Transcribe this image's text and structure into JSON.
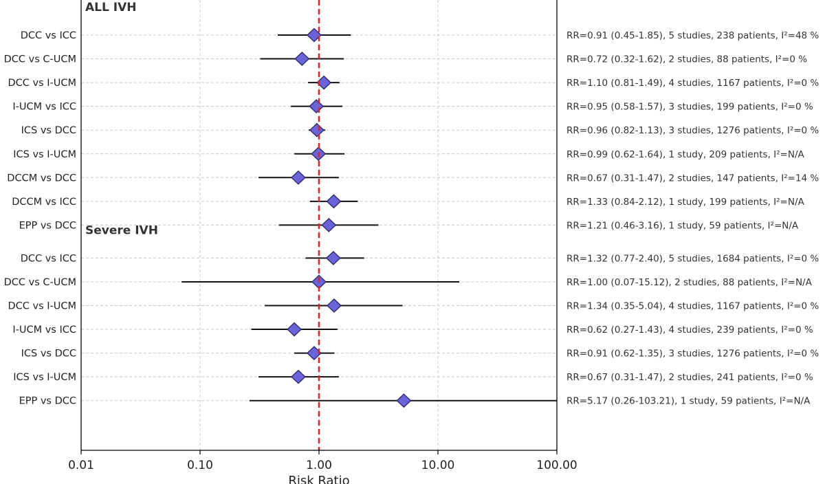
{
  "chart_data": {
    "type": "forest",
    "xlabel": "Risk Ratio",
    "xscale": "log",
    "xlim": [
      0.01,
      100
    ],
    "x_ticks": [
      0.01,
      0.1,
      1,
      10,
      100
    ],
    "x_tick_labels": [
      "0.01",
      "0.10",
      "1.00",
      "10.00",
      "100.00"
    ],
    "reference_line": 1.0,
    "grid": true,
    "colors": {
      "marker_fill": "#6b63d9",
      "marker_edge": "#2a2560",
      "ref_line": "#d62728",
      "ci_line": "#111111",
      "grid": "#c8c8c8"
    },
    "sections": [
      {
        "title": "ALL IVH",
        "rows": [
          {
            "label": "DCC vs ICC",
            "rr": 0.91,
            "lo": 0.45,
            "hi": 1.85,
            "text": "RR=0.91 (0.45-1.85), 5 studies, 238 patients, I²=48 %"
          },
          {
            "label": "DCC vs C-UCM",
            "rr": 0.72,
            "lo": 0.32,
            "hi": 1.62,
            "text": "RR=0.72 (0.32-1.62), 2 studies, 88 patients, I²=0 %"
          },
          {
            "label": "DCC vs I-UCM",
            "rr": 1.1,
            "lo": 0.81,
            "hi": 1.49,
            "text": "RR=1.10 (0.81-1.49), 4 studies, 1167 patients, I²=0 %"
          },
          {
            "label": "I-UCM vs ICC",
            "rr": 0.95,
            "lo": 0.58,
            "hi": 1.57,
            "text": "RR=0.95 (0.58-1.57), 3 studies, 199 patients, I²=0 %"
          },
          {
            "label": "ICS vs DCC",
            "rr": 0.96,
            "lo": 0.82,
            "hi": 1.13,
            "text": "RR=0.96 (0.82-1.13), 3 studies, 1276 patients, I²=0 %"
          },
          {
            "label": "ICS vs I-UCM",
            "rr": 0.99,
            "lo": 0.62,
            "hi": 1.64,
            "text": "RR=0.99 (0.62-1.64), 1 study, 209 patients, I²=N/A"
          },
          {
            "label": "DCCM vs DCC",
            "rr": 0.67,
            "lo": 0.31,
            "hi": 1.47,
            "text": "RR=0.67 (0.31-1.47), 2 studies, 147 patients, I²=14 %"
          },
          {
            "label": "DCCM vs ICC",
            "rr": 1.33,
            "lo": 0.84,
            "hi": 2.12,
            "text": "RR=1.33 (0.84-2.12), 1 study, 199 patients, I²=N/A"
          },
          {
            "label": "EPP vs DCC",
            "rr": 1.21,
            "lo": 0.46,
            "hi": 3.16,
            "text": "RR=1.21 (0.46-3.16), 1 study, 59 patients, I²=N/A"
          }
        ]
      },
      {
        "title": "Severe IVH",
        "rows": [
          {
            "label": "DCC vs ICC",
            "rr": 1.32,
            "lo": 0.77,
            "hi": 2.4,
            "text": "RR=1.32 (0.77-2.40), 5 studies, 1684 patients, I²=0 %"
          },
          {
            "label": "DCC vs C-UCM",
            "rr": 1.0,
            "lo": 0.07,
            "hi": 15.12,
            "text": "RR=1.00 (0.07-15.12), 2 studies, 88 patients, I²=N/A"
          },
          {
            "label": "DCC vs I-UCM",
            "rr": 1.34,
            "lo": 0.35,
            "hi": 5.04,
            "text": "RR=1.34 (0.35-5.04), 4 studies, 1167 patients, I²=0 %"
          },
          {
            "label": "I-UCM vs ICC",
            "rr": 0.62,
            "lo": 0.27,
            "hi": 1.43,
            "text": "RR=0.62 (0.27-1.43), 4 studies, 239 patients, I²=0 %"
          },
          {
            "label": "ICS vs DCC",
            "rr": 0.91,
            "lo": 0.62,
            "hi": 1.35,
            "text": "RR=0.91 (0.62-1.35), 3 studies, 1276 patients, I²=0 %"
          },
          {
            "label": "ICS vs I-UCM",
            "rr": 0.67,
            "lo": 0.31,
            "hi": 1.47,
            "text": "RR=0.67 (0.31-1.47), 2 studies, 241 patients, I²=0 %"
          },
          {
            "label": "EPP vs DCC",
            "rr": 5.17,
            "lo": 0.26,
            "hi": 103.21,
            "text": "RR=5.17 (0.26-103.21), 1 study, 59 patients, I²=N/A"
          }
        ]
      }
    ]
  }
}
